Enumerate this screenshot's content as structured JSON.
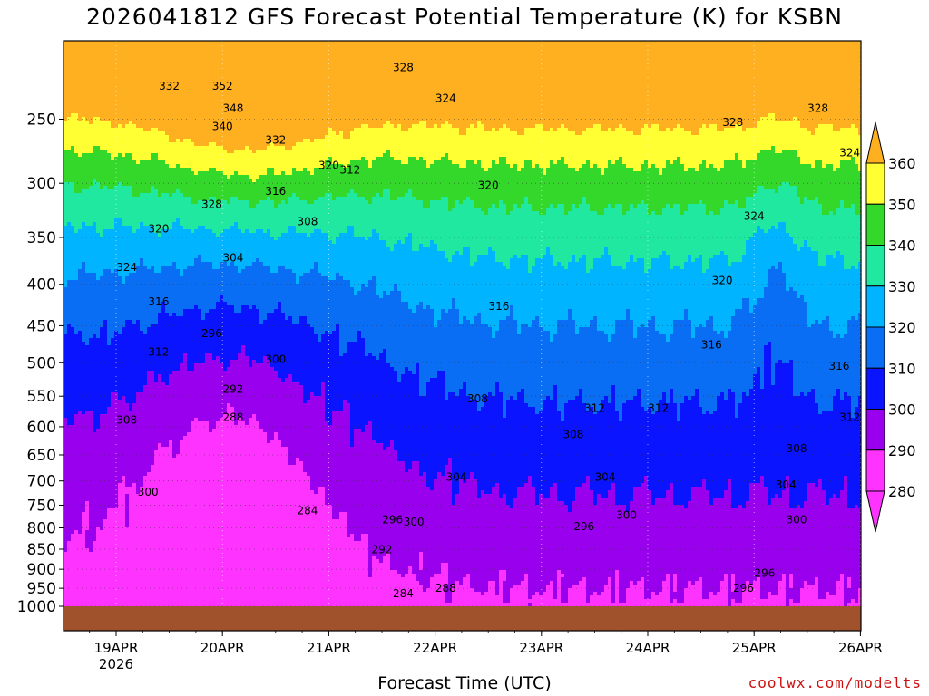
{
  "chart_data": {
    "type": "heatmap",
    "title": "2026041812 GFS Forecast Potential Temperature (K) for KSBN",
    "xlabel": "Forecast Time (UTC)",
    "ylabel": "",
    "x_ticks": [
      "19APR",
      "20APR",
      "21APR",
      "22APR",
      "23APR",
      "24APR",
      "25APR",
      "26APR"
    ],
    "x_tick_sublabel": "2026",
    "x_range": [
      "2026-04-18 12Z",
      "2026-04-26 00Z"
    ],
    "y_ticks": [
      250,
      300,
      350,
      400,
      450,
      500,
      550,
      600,
      650,
      700,
      750,
      800,
      850,
      900,
      950,
      1000
    ],
    "y_range": [
      200,
      1000
    ],
    "y_scale": "log (pressure, hPa)",
    "colorbar": {
      "levels": [
        280,
        290,
        300,
        310,
        320,
        330,
        340,
        350,
        360
      ],
      "colors": [
        "#ff33ff",
        "#9900ee",
        "#0a14ff",
        "#0a6ef5",
        "#00b4ff",
        "#20e8a0",
        "#33d82a",
        "#ffff33",
        "#ffb020"
      ],
      "extend": "both"
    },
    "contour_interval": 4,
    "ground_color": "#a0522d",
    "contour_labels": [
      {
        "value": 332,
        "t": 0.5,
        "p": 230
      },
      {
        "value": 352,
        "t": 1.0,
        "p": 230
      },
      {
        "value": 348,
        "t": 1.1,
        "p": 245
      },
      {
        "value": 340,
        "t": 1.0,
        "p": 258
      },
      {
        "value": 332,
        "t": 1.5,
        "p": 268
      },
      {
        "value": 328,
        "t": 2.7,
        "p": 218
      },
      {
        "value": 324,
        "t": 3.1,
        "p": 238
      },
      {
        "value": 320,
        "t": 2.0,
        "p": 288
      },
      {
        "value": 312,
        "t": 2.2,
        "p": 292
      },
      {
        "value": 316,
        "t": 1.5,
        "p": 310
      },
      {
        "value": 328,
        "t": 0.9,
        "p": 322
      },
      {
        "value": 320,
        "t": 0.4,
        "p": 345
      },
      {
        "value": 308,
        "t": 1.8,
        "p": 338
      },
      {
        "value": 324,
        "t": 0.1,
        "p": 385
      },
      {
        "value": 304,
        "t": 1.1,
        "p": 375
      },
      {
        "value": 316,
        "t": 0.4,
        "p": 425
      },
      {
        "value": 296,
        "t": 0.9,
        "p": 465
      },
      {
        "value": 312,
        "t": 0.4,
        "p": 490
      },
      {
        "value": 300,
        "t": 1.5,
        "p": 500
      },
      {
        "value": 292,
        "t": 1.1,
        "p": 545
      },
      {
        "value": 288,
        "t": 1.1,
        "p": 590
      },
      {
        "value": 308,
        "t": 0.1,
        "p": 595
      },
      {
        "value": 284,
        "t": 1.8,
        "p": 770
      },
      {
        "value": 300,
        "t": 0.3,
        "p": 730
      },
      {
        "value": 296,
        "t": 2.6,
        "p": 790
      },
      {
        "value": 292,
        "t": 2.5,
        "p": 860
      },
      {
        "value": 288,
        "t": 3.1,
        "p": 960
      },
      {
        "value": 284,
        "t": 2.7,
        "p": 975
      },
      {
        "value": 300,
        "t": 2.8,
        "p": 795
      },
      {
        "value": 320,
        "t": 3.5,
        "p": 305
      },
      {
        "value": 316,
        "t": 3.6,
        "p": 430
      },
      {
        "value": 308,
        "t": 3.4,
        "p": 560
      },
      {
        "value": 304,
        "t": 3.2,
        "p": 700
      },
      {
        "value": 312,
        "t": 4.5,
        "p": 575
      },
      {
        "value": 308,
        "t": 4.3,
        "p": 620
      },
      {
        "value": 304,
        "t": 4.6,
        "p": 700
      },
      {
        "value": 296,
        "t": 4.4,
        "p": 805
      },
      {
        "value": 300,
        "t": 4.8,
        "p": 780
      },
      {
        "value": 328,
        "t": 5.8,
        "p": 255
      },
      {
        "value": 324,
        "t": 6.0,
        "p": 333
      },
      {
        "value": 320,
        "t": 5.7,
        "p": 400
      },
      {
        "value": 316,
        "t": 5.6,
        "p": 480
      },
      {
        "value": 312,
        "t": 5.1,
        "p": 575
      },
      {
        "value": 296,
        "t": 5.9,
        "p": 960
      },
      {
        "value": 328,
        "t": 6.6,
        "p": 245
      },
      {
        "value": 324,
        "t": 6.9,
        "p": 278
      },
      {
        "value": 320,
        "t": 7.0,
        "p": 410
      },
      {
        "value": 316,
        "t": 6.8,
        "p": 510
      },
      {
        "value": 312,
        "t": 6.9,
        "p": 590
      },
      {
        "value": 308,
        "t": 6.4,
        "p": 645
      },
      {
        "value": 304,
        "t": 6.3,
        "p": 715
      },
      {
        "value": 300,
        "t": 6.4,
        "p": 790
      },
      {
        "value": 296,
        "t": 6.1,
        "p": 920
      }
    ]
  },
  "credit": "coolwx.com/modelts"
}
